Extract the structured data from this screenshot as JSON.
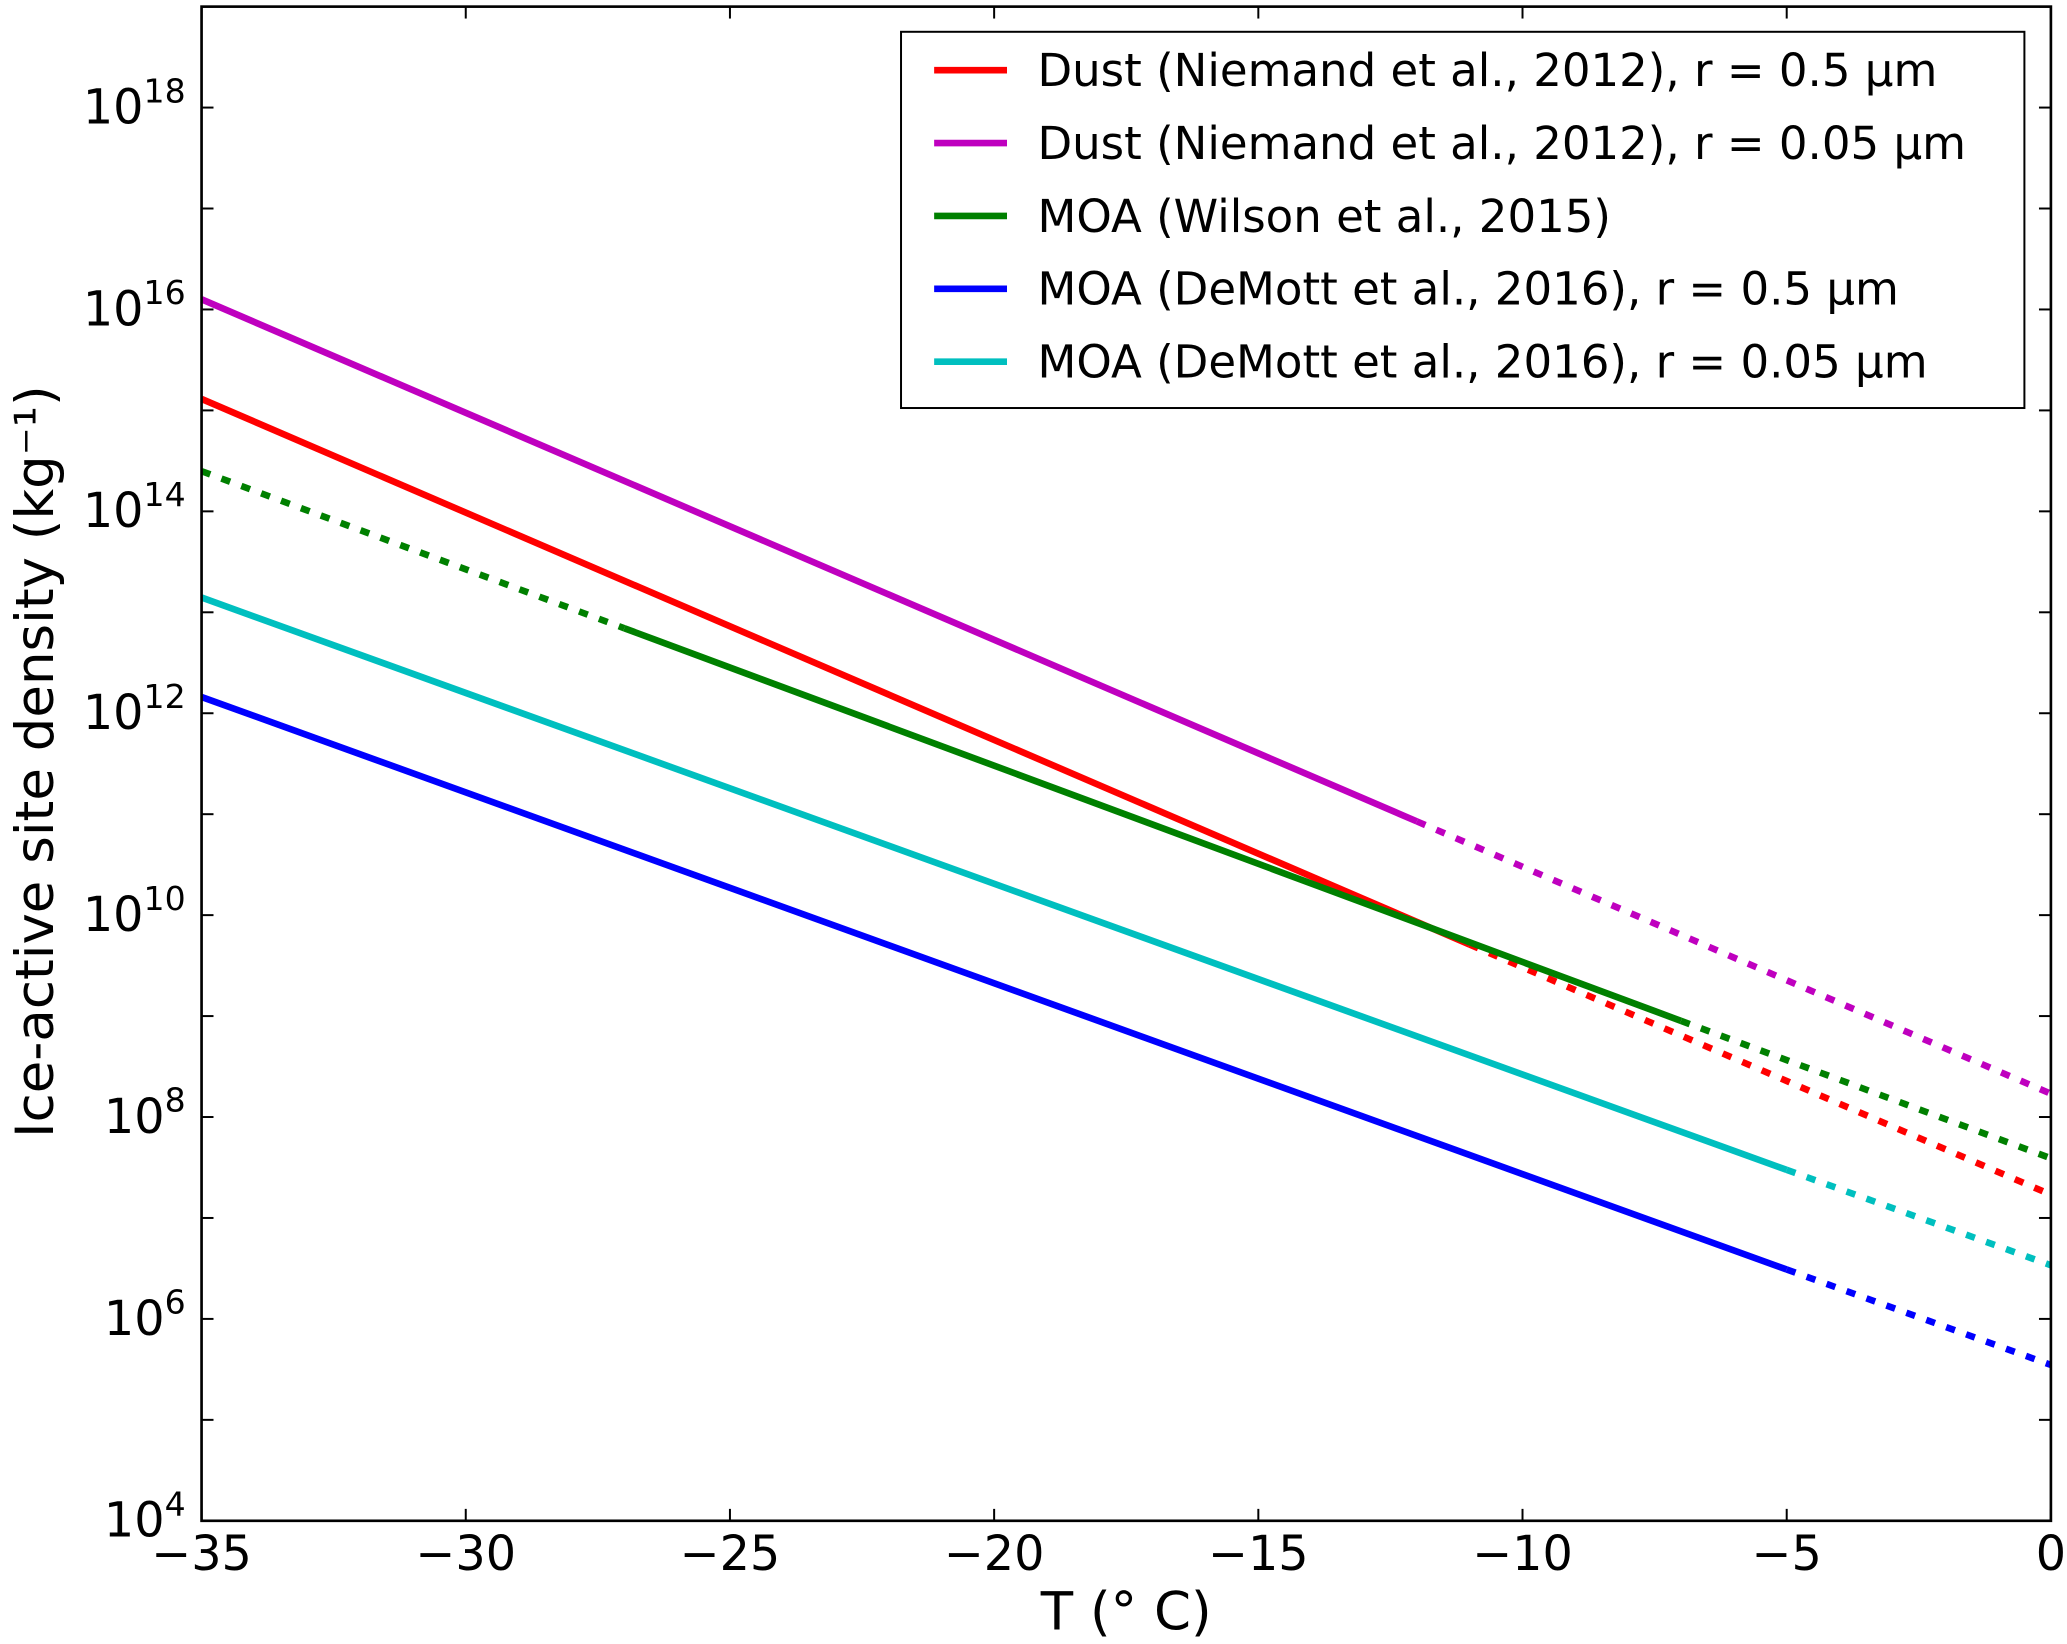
{
  "chart_data": {
    "type": "line",
    "title": "",
    "xlabel": "T (° C)",
    "ylabel": "Ice-active site density (kg⁻¹)",
    "xlim": [
      -35,
      0
    ],
    "ylim": [
      10000.0,
      1e+19
    ],
    "yscale": "log",
    "grid": false,
    "legend_position": "top-right",
    "x_ticks": [
      -35,
      -30,
      -25,
      -20,
      -15,
      -10,
      -5,
      0
    ],
    "x_tick_labels": [
      "−35",
      "−30",
      "−25",
      "−20",
      "−15",
      "−10",
      "−5",
      "0"
    ],
    "y_tick_exponents": [
      4,
      6,
      8,
      10,
      12,
      14,
      16,
      18
    ],
    "y_tick_base": "10",
    "series": [
      {
        "name": "Dust (Niemand et al., 2012), r = 0.5 µm",
        "color": "#ff0000",
        "x": [
          -35,
          0
        ],
        "y": [
          1300000000000000.0,
          17000000.0
        ],
        "solid_range": [
          -35,
          -11
        ]
      },
      {
        "name": "Dust (Niemand et al., 2012), r = 0.05 µm",
        "color": "#bf00bf",
        "x": [
          -35,
          0
        ],
        "y": [
          1.26e+16,
          170000000.0
        ],
        "solid_range": [
          -35,
          -12
        ]
      },
      {
        "name": "MOA (Wilson et al., 2015)",
        "color": "#008000",
        "x": [
          -35,
          0
        ],
        "y": [
          250000000000000.0,
          39000000.0
        ],
        "solid_range": [
          -27,
          -7
        ]
      },
      {
        "name": "MOA (DeMott et al., 2016), r = 0.5 µm",
        "color": "#0000ff",
        "x": [
          -35,
          0
        ],
        "y": [
          1450000000000.0,
          350000.0
        ],
        "solid_range": [
          -35,
          -5
        ]
      },
      {
        "name": "MOA (DeMott et al., 2016), r = 0.05 µm",
        "color": "#00bfbf",
        "x": [
          -35,
          0
        ],
        "y": [
          14000000000000.0,
          3400000.0
        ],
        "solid_range": [
          -35,
          -5
        ]
      }
    ]
  }
}
